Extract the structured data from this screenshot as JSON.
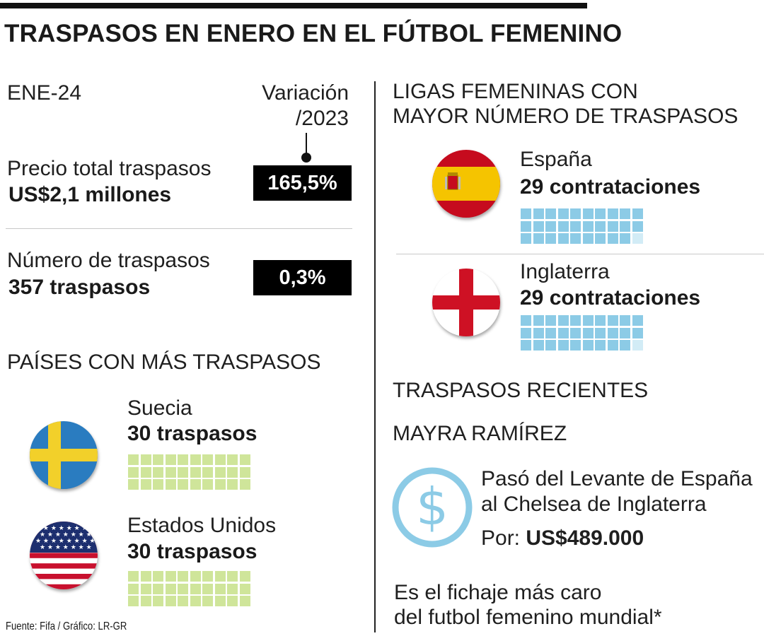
{
  "title": "TRASPASOS EN ENERO EN EL FÚTBOL FEMENINO",
  "left": {
    "period": "ENE-24",
    "variation_line1": "Variación",
    "variation_line2": "/2023",
    "price_label": "Precio total traspasos",
    "price_value": "US$2,1 millones",
    "price_change": "165,5%",
    "count_label": "Número de traspasos",
    "count_value": "357 traspasos",
    "count_change": "0,3%",
    "countries_title": "PAÍSES CON MÁS TRASPASOS",
    "countries": [
      {
        "name": "Suecia",
        "value": "30 traspasos",
        "flag_icon": "sweden-flag-icon",
        "count": 30
      },
      {
        "name": "Estados Unidos",
        "value": "30 traspasos",
        "flag_icon": "usa-flag-icon",
        "count": 30
      }
    ]
  },
  "right": {
    "leagues_title_1": "LIGAS FEMENINAS CON",
    "leagues_title_2": "MAYOR NÚMERO DE TRASPASOS",
    "leagues": [
      {
        "name": "España",
        "value": "29 contrataciones",
        "flag_icon": "spain-flag-icon",
        "count": 29
      },
      {
        "name": "Inglaterra",
        "value": "29 contrataciones",
        "flag_icon": "england-flag-icon",
        "count": 29
      }
    ],
    "recent_title": "TRASPASOS RECIENTES",
    "player": "MAYRA RAMÍREZ",
    "transfer_line1": "Pasó del  Levante de España",
    "transfer_line2": "al Chelsea de Inglaterra",
    "fee_label": "Por:",
    "fee_value": "US$489.000",
    "note_line1": "Es el fichaje más caro",
    "note_line2": "del futbol femenino mundial*"
  },
  "source": "Fuente: Fifa / Gráfico: LR-GR",
  "colors": {
    "green_square": "#cfe59a",
    "blue_square": "#8ccbe6",
    "blue_square_empty": "#d2ecf6",
    "dollar_icon": "#8ccbe6",
    "badge": "#000000"
  }
}
